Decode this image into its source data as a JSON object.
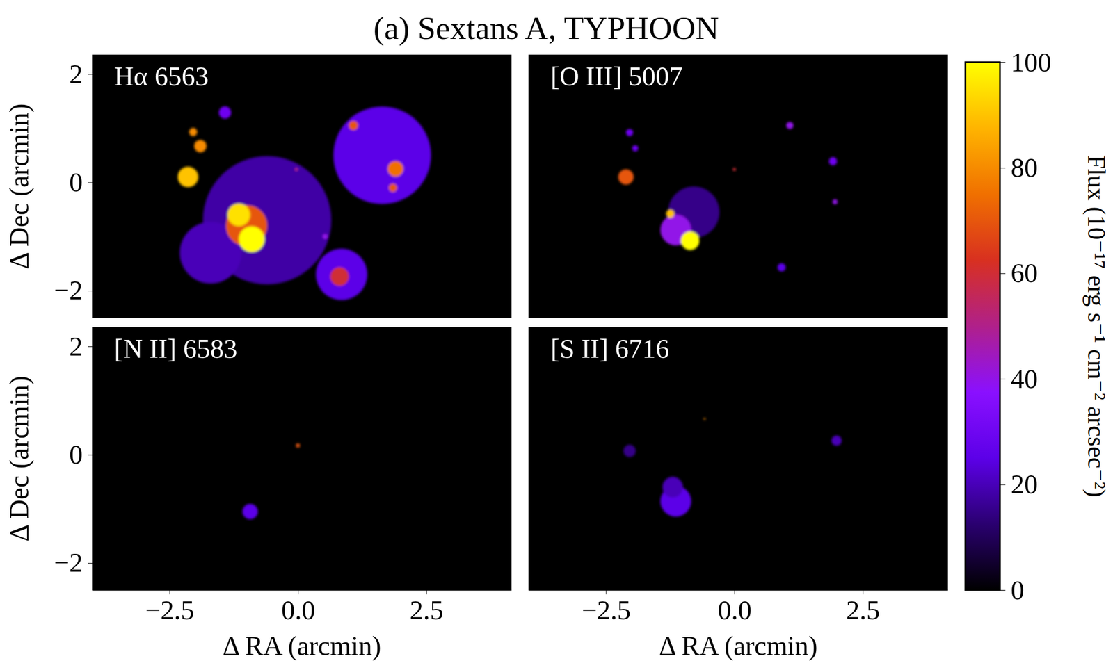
{
  "chart_data": {
    "type": "heatmap",
    "title": "(a) Sextans A, TYPHOON",
    "x_label": "Δ RA (arcmin)",
    "y_label": "Δ Dec (arcmin)",
    "xlim": [
      -4.0,
      4.15
    ],
    "ylim": [
      -2.5,
      2.35
    ],
    "xticks": [
      {
        "value": -2.5,
        "label": "−2.5"
      },
      {
        "value": 0,
        "label": "0.0"
      },
      {
        "value": 2.5,
        "label": "2.5"
      }
    ],
    "yticks": [
      {
        "value": -2,
        "label": "−2"
      },
      0,
      2
    ],
    "colorbar": {
      "label": "Flux (10⁻¹⁷ erg s⁻¹ cm⁻² arcsec⁻²)",
      "range": [
        0,
        100
      ],
      "ticks": [
        0,
        20,
        40,
        60,
        80,
        100
      ]
    },
    "panels": [
      {
        "title": "Hα 6563",
        "regions": {
          "x": [
            -0.6,
            1.64,
            -1.7,
            0.85,
            -1.0,
            -1.15,
            -0.9,
            -2.14,
            0.81,
            1.9,
            -1.42,
            -1.9,
            1.08,
            -2.04,
            1.85,
            0.53,
            -0.03
          ],
          "y": [
            -0.7,
            0.5,
            -1.3,
            -1.7,
            -0.8,
            -0.6,
            -1.05,
            0.1,
            -1.74,
            0.25,
            1.29,
            0.67,
            1.05,
            0.93,
            -0.1,
            -1.0,
            0.24
          ],
          "flux": [
            18,
            25,
            20,
            25,
            70,
            95,
            100,
            90,
            60,
            75,
            30,
            80,
            70,
            80,
            70,
            40,
            50
          ],
          "radius": [
            1.25,
            0.95,
            0.6,
            0.5,
            0.4,
            0.22,
            0.25,
            0.2,
            0.18,
            0.15,
            0.12,
            0.12,
            0.09,
            0.08,
            0.08,
            0.05,
            0.03
          ]
        }
      },
      {
        "title": "[O III] 5007",
        "regions": {
          "x": [
            -0.79,
            -1.14,
            -0.86,
            -2.11,
            0.92,
            1.92,
            -1.25,
            1.08,
            -2.04,
            -1.93,
            1.96,
            0.0
          ],
          "y": [
            -0.55,
            -0.88,
            -1.08,
            0.1,
            -1.57,
            0.39,
            -0.58,
            1.05,
            0.92,
            0.63,
            -0.36,
            0.24
          ],
          "flux": [
            15,
            40,
            100,
            70,
            25,
            30,
            90,
            40,
            30,
            30,
            40,
            60
          ],
          "radius": [
            0.5,
            0.3,
            0.18,
            0.15,
            0.08,
            0.08,
            0.08,
            0.07,
            0.07,
            0.06,
            0.05,
            0.03
          ]
        }
      },
      {
        "title": "[N II] 6583",
        "regions": {
          "x": [
            -0.93,
            0.0
          ],
          "y": [
            -1.05,
            0.17
          ],
          "flux": [
            25,
            70
          ],
          "radius": [
            0.15,
            0.04
          ]
        }
      },
      {
        "title": "[S II] 6716",
        "regions": {
          "x": [
            -1.14,
            -1.2,
            -2.04,
            1.99,
            -0.58
          ],
          "y": [
            -0.86,
            -0.6,
            0.07,
            0.26,
            0.66
          ],
          "flux": [
            25,
            20,
            15,
            20,
            80
          ],
          "radius": [
            0.3,
            0.2,
            0.12,
            0.1,
            0.02
          ]
        }
      }
    ]
  }
}
